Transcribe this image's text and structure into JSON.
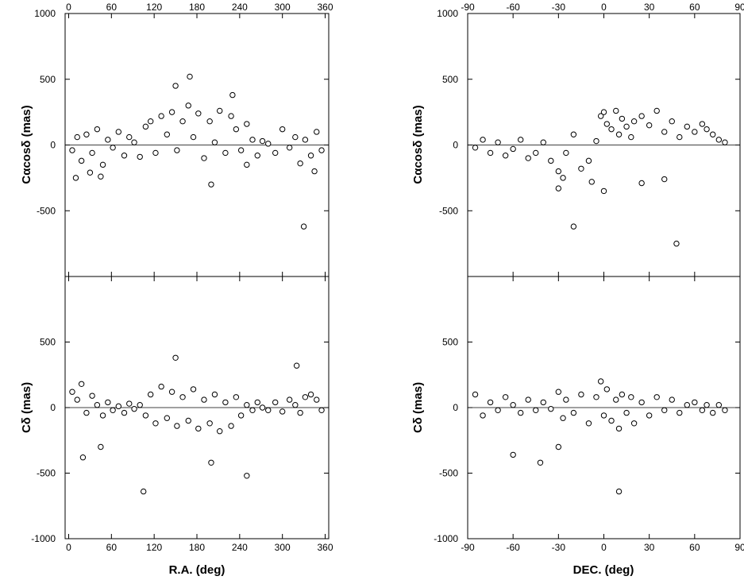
{
  "chart_data": [
    {
      "id": "ra_calpha",
      "type": "scatter",
      "xlabel": "",
      "ylabel": "Cαcosδ (mas)",
      "xlim": [
        -5,
        365
      ],
      "ylim": [
        -1000,
        1000
      ],
      "x_ticks": [
        0,
        60,
        120,
        180,
        240,
        300,
        360
      ],
      "y_ticks": [
        -500,
        0,
        500,
        1000
      ],
      "x_tick_labels_top": true,
      "x_tick_labels_bottom": false,
      "grid": false,
      "series": [
        {
          "marker": "open-circle",
          "x": [
            5,
            12,
            18,
            25,
            33,
            40,
            48,
            55,
            62,
            70,
            78,
            85,
            92,
            100,
            108,
            115,
            122,
            130,
            138,
            145,
            152,
            160,
            168,
            175,
            182,
            190,
            198,
            205,
            212,
            220,
            228,
            235,
            242,
            250,
            258,
            265,
            272,
            280,
            290,
            300,
            310,
            318,
            325,
            332,
            340,
            348,
            355,
            10,
            30,
            45,
            150,
            170,
            200,
            230,
            250,
            330,
            345
          ],
          "y": [
            -40,
            60,
            -120,
            80,
            -60,
            120,
            -150,
            40,
            -20,
            100,
            -80,
            60,
            20,
            -90,
            140,
            180,
            -60,
            220,
            80,
            250,
            -40,
            180,
            300,
            60,
            240,
            -100,
            180,
            20,
            260,
            -60,
            220,
            120,
            -40,
            160,
            40,
            -80,
            30,
            10,
            -60,
            120,
            -20,
            60,
            -140,
            40,
            -80,
            100,
            -40,
            -250,
            -210,
            -240,
            450,
            520,
            -300,
            380,
            -150,
            -620,
            -200
          ]
        }
      ]
    },
    {
      "id": "dec_calpha",
      "type": "scatter",
      "xlabel": "",
      "ylabel": "Cαcosδ (mas)",
      "xlim": [
        -90,
        90
      ],
      "ylim": [
        -1000,
        1000
      ],
      "x_ticks": [
        -90,
        -60,
        -30,
        0,
        30,
        60,
        90
      ],
      "y_ticks": [
        -500,
        0,
        500,
        1000
      ],
      "x_tick_labels_top": true,
      "x_tick_labels_bottom": false,
      "grid": false,
      "series": [
        {
          "marker": "open-circle",
          "x": [
            -85,
            -80,
            -75,
            -70,
            -65,
            -60,
            -55,
            -50,
            -45,
            -40,
            -35,
            -30,
            -27,
            -25,
            -20,
            -15,
            -10,
            -5,
            -2,
            0,
            2,
            5,
            8,
            10,
            12,
            15,
            18,
            20,
            25,
            30,
            35,
            40,
            45,
            50,
            55,
            60,
            65,
            68,
            72,
            76,
            80,
            -30,
            -8,
            0,
            25,
            40,
            48,
            -20
          ],
          "y": [
            -20,
            40,
            -60,
            20,
            -80,
            -30,
            40,
            -100,
            -60,
            20,
            -120,
            -200,
            -250,
            -60,
            80,
            -180,
            -120,
            30,
            220,
            250,
            160,
            120,
            260,
            80,
            200,
            140,
            60,
            180,
            220,
            150,
            260,
            100,
            180,
            60,
            140,
            100,
            160,
            120,
            80,
            40,
            20,
            -330,
            -280,
            -350,
            -290,
            -260,
            -750,
            -620
          ]
        }
      ]
    },
    {
      "id": "ra_cdelta",
      "type": "scatter",
      "xlabel": "R.A. (deg)",
      "ylabel": "Cδ (mas)",
      "xlim": [
        -5,
        365
      ],
      "ylim": [
        -1000,
        1000
      ],
      "x_ticks": [
        0,
        60,
        120,
        180,
        240,
        300,
        360
      ],
      "y_ticks": [
        -1000,
        -500,
        0,
        500
      ],
      "x_tick_labels_top": false,
      "x_tick_labels_bottom": true,
      "grid": false,
      "series": [
        {
          "marker": "open-circle",
          "x": [
            5,
            12,
            18,
            25,
            33,
            40,
            48,
            55,
            62,
            70,
            78,
            85,
            92,
            100,
            108,
            115,
            122,
            130,
            138,
            145,
            152,
            160,
            168,
            175,
            182,
            190,
            198,
            205,
            212,
            220,
            228,
            235,
            242,
            250,
            258,
            265,
            272,
            280,
            290,
            300,
            310,
            318,
            325,
            332,
            340,
            348,
            355,
            20,
            45,
            105,
            150,
            200,
            250,
            320
          ],
          "y": [
            120,
            60,
            180,
            -40,
            90,
            20,
            -60,
            40,
            -20,
            10,
            -40,
            30,
            -10,
            20,
            -60,
            100,
            -120,
            160,
            -80,
            120,
            -140,
            80,
            -100,
            140,
            -160,
            60,
            -120,
            100,
            -180,
            40,
            -140,
            80,
            -60,
            20,
            -20,
            40,
            0,
            -20,
            40,
            -30,
            60,
            20,
            -40,
            80,
            100,
            60,
            -20,
            -380,
            -300,
            -640,
            380,
            -420,
            -520,
            320
          ]
        }
      ]
    },
    {
      "id": "dec_cdelta",
      "type": "scatter",
      "xlabel": "DEC. (deg)",
      "ylabel": "Cδ (mas)",
      "xlim": [
        -90,
        90
      ],
      "ylim": [
        -1000,
        1000
      ],
      "x_ticks": [
        -90,
        -60,
        -30,
        0,
        30,
        60,
        90
      ],
      "y_ticks": [
        -1000,
        -500,
        0,
        500
      ],
      "x_tick_labels_top": false,
      "x_tick_labels_bottom": true,
      "grid": false,
      "series": [
        {
          "marker": "open-circle",
          "x": [
            -85,
            -80,
            -75,
            -70,
            -65,
            -60,
            -55,
            -50,
            -45,
            -40,
            -35,
            -30,
            -27,
            -25,
            -20,
            -15,
            -10,
            -5,
            -2,
            0,
            2,
            5,
            8,
            10,
            12,
            15,
            18,
            20,
            25,
            30,
            35,
            40,
            45,
            50,
            55,
            60,
            65,
            68,
            72,
            76,
            80,
            -60,
            -42,
            10,
            -30
          ],
          "y": [
            100,
            -60,
            40,
            -20,
            80,
            20,
            -40,
            60,
            -20,
            40,
            -10,
            120,
            -80,
            60,
            -40,
            100,
            -120,
            80,
            200,
            -60,
            140,
            -100,
            60,
            -160,
            100,
            -40,
            80,
            -120,
            40,
            -60,
            80,
            -20,
            60,
            -40,
            20,
            40,
            -20,
            20,
            -40,
            20,
            -20,
            -360,
            -420,
            -640,
            -300
          ]
        }
      ]
    }
  ]
}
